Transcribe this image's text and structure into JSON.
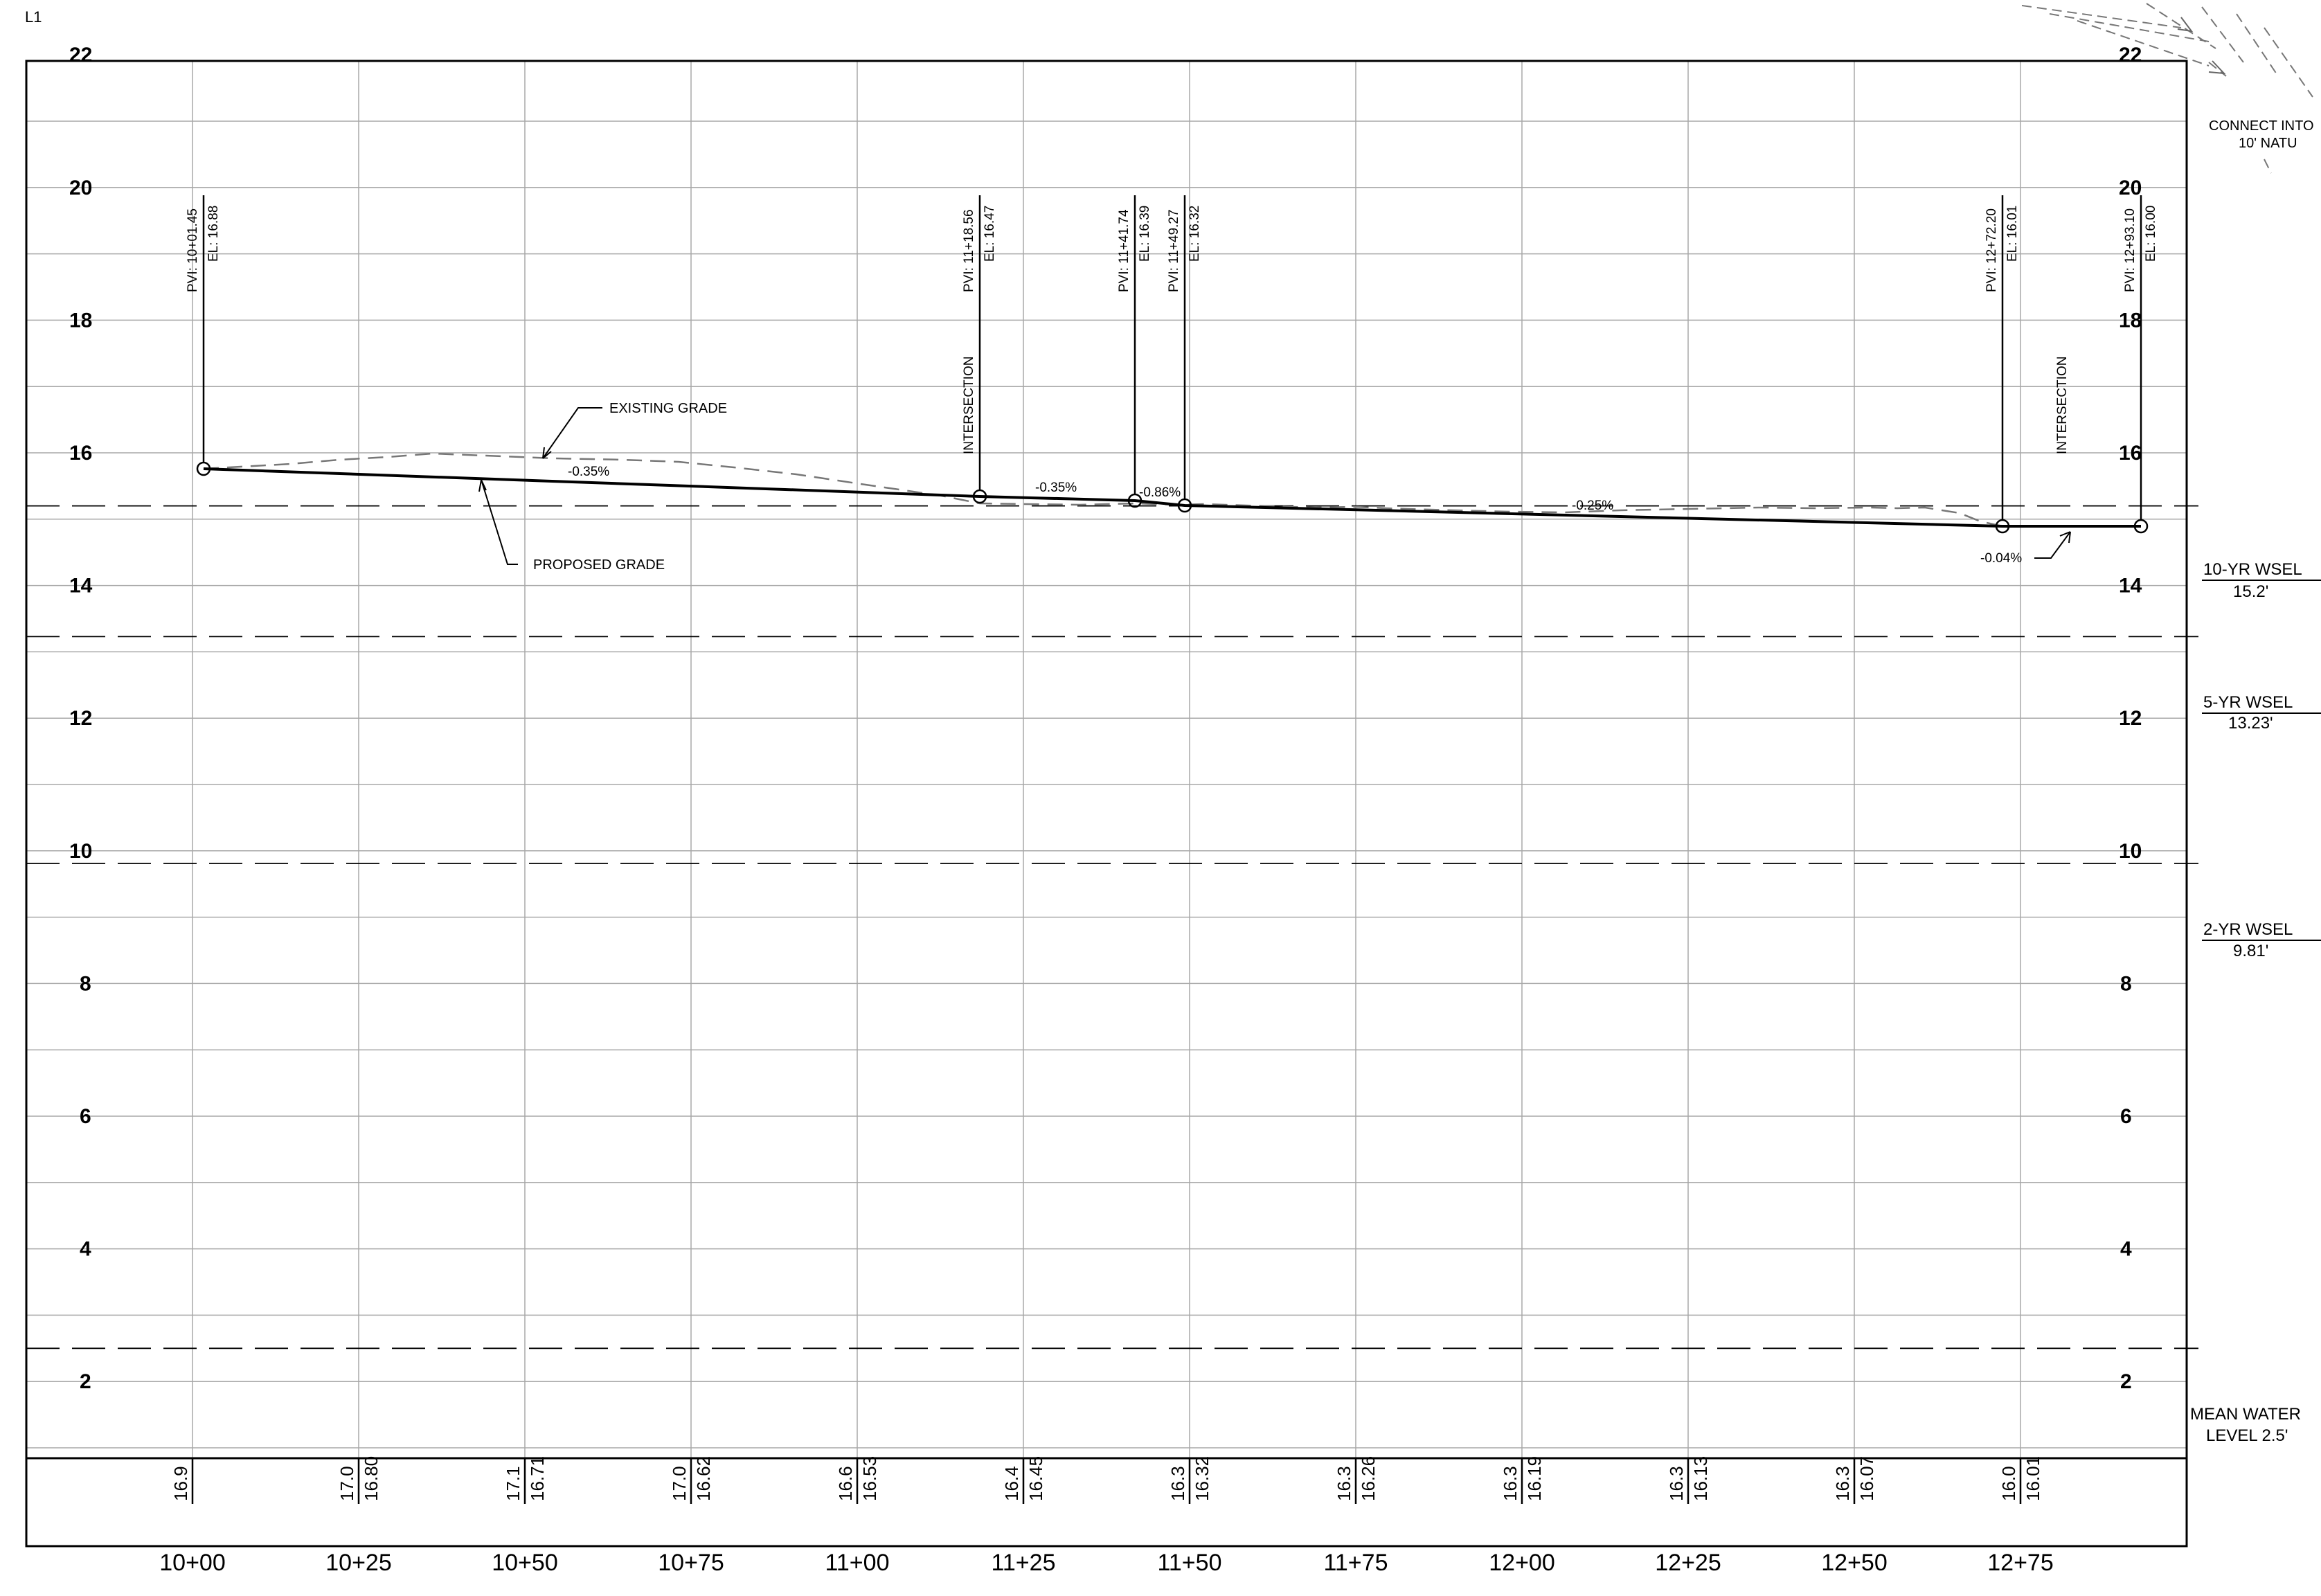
{
  "sheet": {
    "id": "L1",
    "note_lines": [
      "CONNECT INTO",
      "10' NATU"
    ]
  },
  "profile": {
    "station_labels": [
      "10+00",
      "10+25",
      "10+50",
      "10+75",
      "11+00",
      "11+25",
      "11+50",
      "11+75",
      "12+00",
      "12+25",
      "12+50",
      "12+75"
    ],
    "elevation_labels_left": [
      "22",
      "20",
      "18",
      "16",
      "14",
      "12",
      "10",
      "8",
      "6",
      "4",
      "2"
    ],
    "elevation_labels_right": [
      "22",
      "20",
      "18",
      "16",
      "14",
      "12",
      "10",
      "8",
      "6",
      "4",
      "2"
    ],
    "existing_grade_label": "EXISTING GRADE",
    "proposed_grade_label": "PROPOSED GRADE",
    "pvis": [
      {
        "station": "PVI: 10+01.45",
        "elevation": "EL: 16.88"
      },
      {
        "station": "PVI: 11+18.56",
        "elevation": "EL: 16.47",
        "note": "INTERSECTION"
      },
      {
        "station": "PVI: 11+41.74",
        "elevation": "EL: 16.39"
      },
      {
        "station": "PVI: 11+49.27",
        "elevation": "EL: 16.32"
      },
      {
        "station": "PVI: 12+72.20",
        "elevation": "EL: 16.01"
      },
      {
        "station": "PVI: 12+93.10",
        "elevation": "EL: 16.00"
      }
    ],
    "intersection_label": "INTERSECTION",
    "grades": [
      "-0.35%",
      "-0.35%",
      "-0.86%",
      "-0.25%",
      "-0.04%"
    ],
    "bottom_existing": [
      "16.9",
      "17.0",
      "17.1",
      "17.0",
      "16.6",
      "16.4",
      "16.3",
      "16.3",
      "16.3",
      "16.3",
      "16.3",
      "16.0"
    ],
    "bottom_proposed": [
      "16.80",
      "16.71",
      "16.62",
      "16.53",
      "16.45",
      "16.32",
      "16.26",
      "16.19",
      "16.13",
      "16.07",
      "16.01"
    ],
    "water_levels": [
      {
        "line1": "10-YR WSEL",
        "line2": "15.2'",
        "elevation": 15.2
      },
      {
        "line1": "5-YR WSEL",
        "line2": "13.23'",
        "elevation": 13.23
      },
      {
        "line1": "2-YR WSEL",
        "line2": "9.81'",
        "elevation": 9.81
      },
      {
        "line1": "MEAN WATER",
        "line2": "LEVEL 2.5'",
        "elevation": 2.5
      }
    ]
  }
}
